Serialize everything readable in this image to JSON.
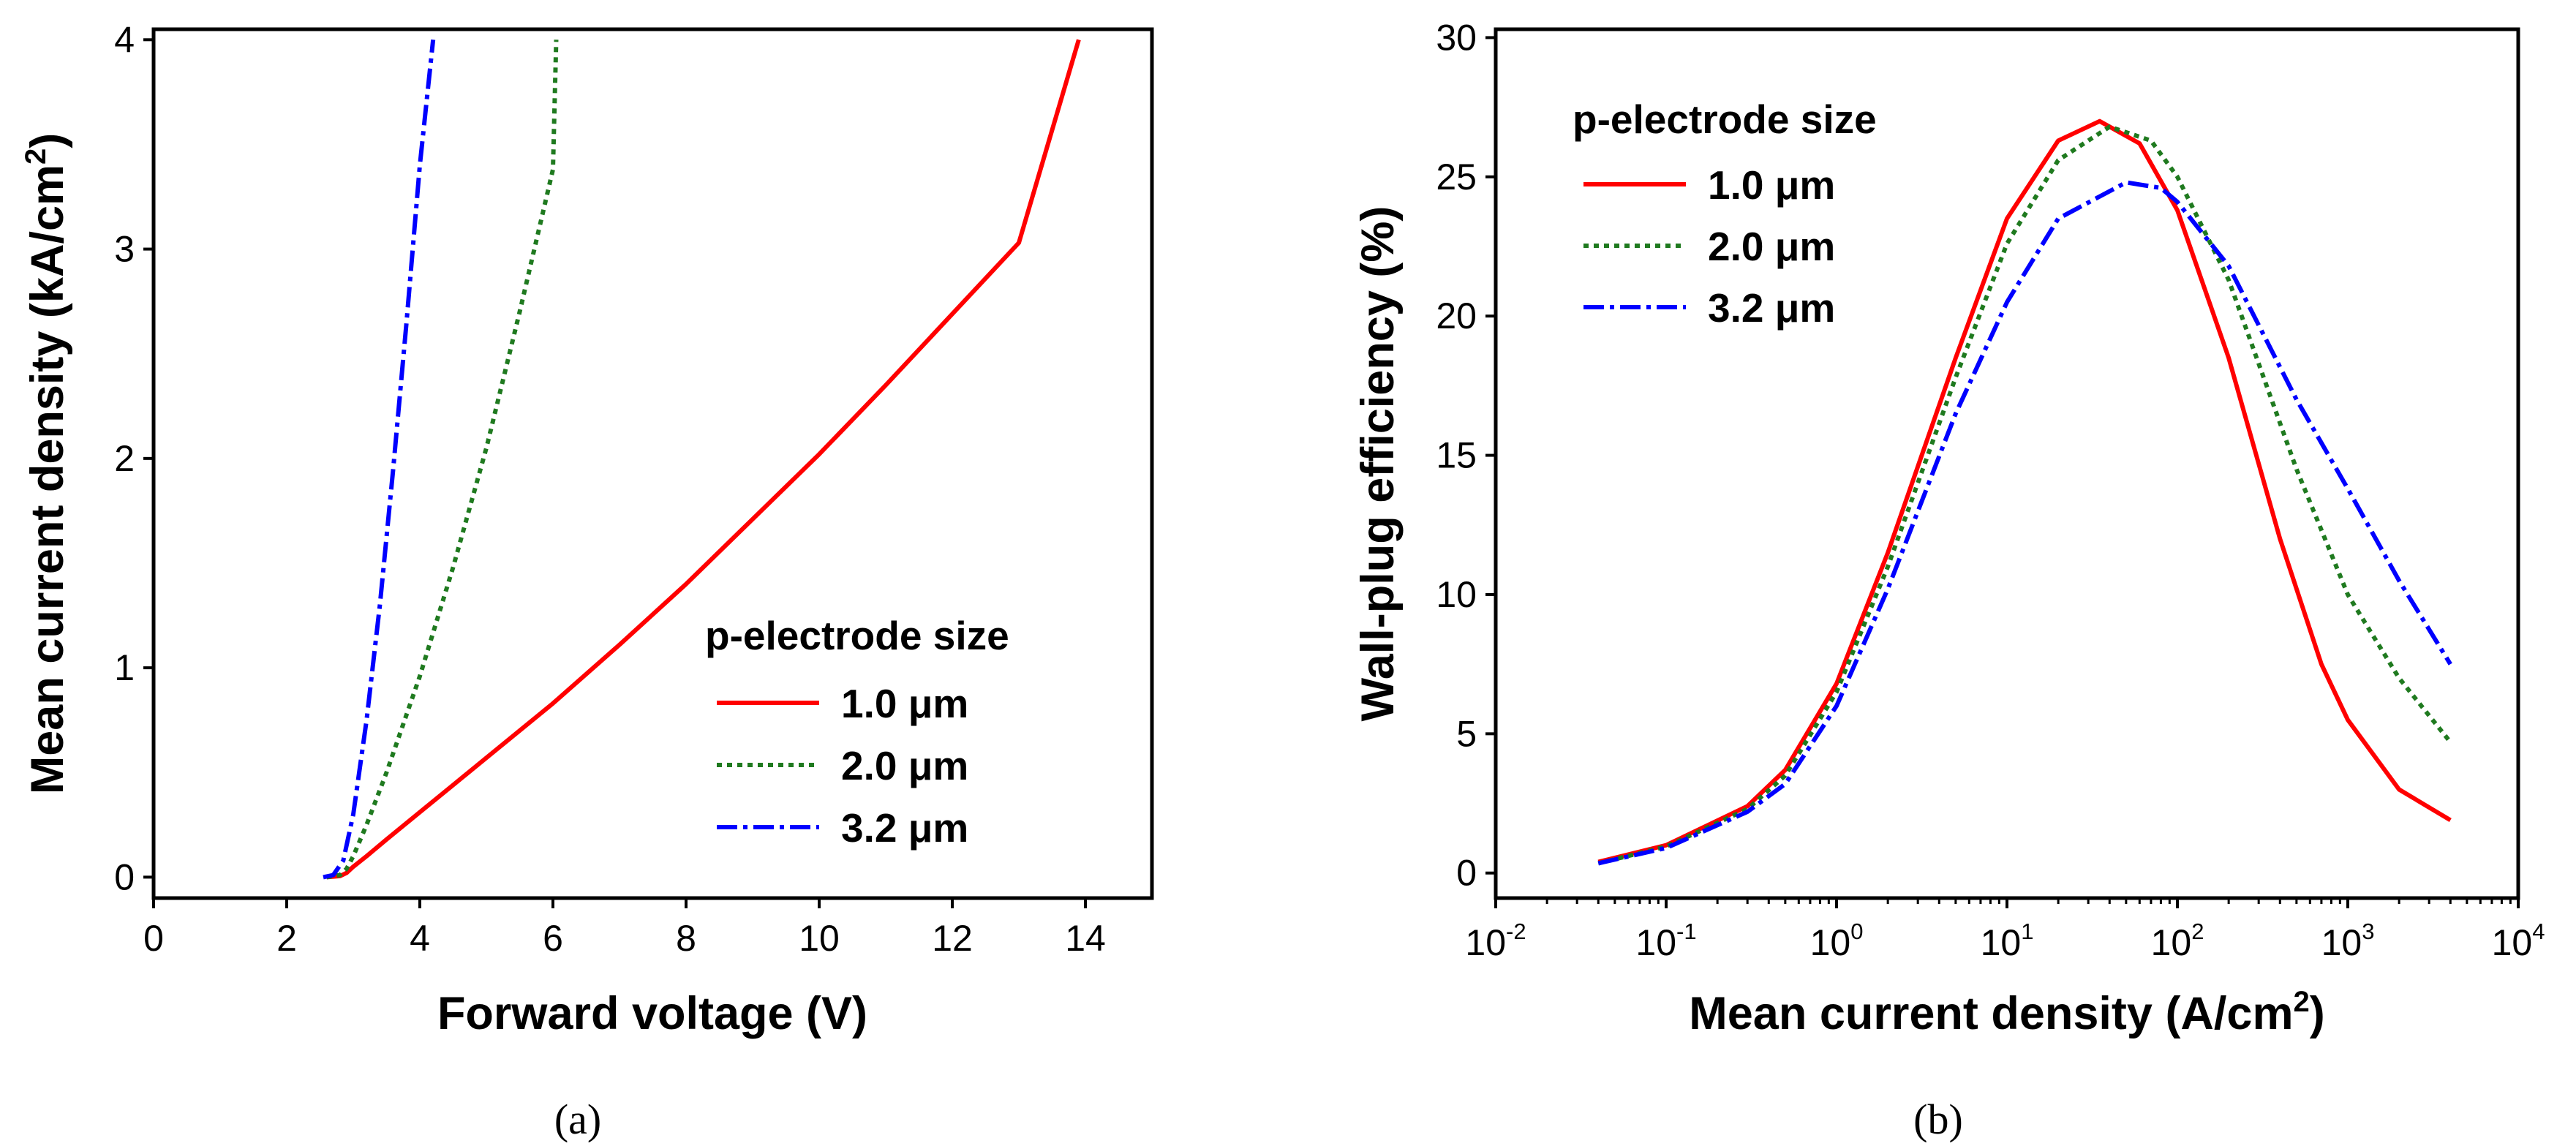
{
  "chart_data": [
    {
      "id": "a",
      "type": "line",
      "caption": "(a)",
      "xlabel": "Forward voltage (V)",
      "ylabel": "Mean current density (kA/cm",
      "ylabel_sup": "2",
      "ylabel_close": ")",
      "xlim": [
        0,
        15
      ],
      "ylim": [
        -0.1,
        4.05
      ],
      "x_ticks": [
        0,
        2,
        4,
        6,
        8,
        10,
        12,
        14
      ],
      "x_tick_labels": [
        "0",
        "2",
        "4",
        "6",
        "8",
        "10",
        "12",
        "14"
      ],
      "y_ticks": [
        0,
        1,
        2,
        3,
        4
      ],
      "y_tick_labels": [
        "0",
        "1",
        "2",
        "3",
        "4"
      ],
      "legend": {
        "title": "p-electrode size",
        "position": "lower-right"
      },
      "series": [
        {
          "name": "1.0 μm",
          "color": "#ff0000",
          "style": "solid",
          "points": [
            [
              2.6,
              0.0
            ],
            [
              2.8,
              0.005
            ],
            [
              2.9,
              0.02
            ],
            [
              3.0,
              0.05
            ],
            [
              3.2,
              0.1
            ],
            [
              3.5,
              0.18
            ],
            [
              4.0,
              0.31
            ],
            [
              4.5,
              0.44
            ],
            [
              5.0,
              0.57
            ],
            [
              6.0,
              0.83
            ],
            [
              7.0,
              1.11
            ],
            [
              8.0,
              1.4
            ],
            [
              9.0,
              1.71
            ],
            [
              10.0,
              2.02
            ],
            [
              11.0,
              2.35
            ],
            [
              12.0,
              2.69
            ],
            [
              13.0,
              3.03
            ],
            [
              13.9,
              4.0
            ]
          ]
        },
        {
          "name": "2.0 μm",
          "color": "#1f7a1f",
          "style": "dotted",
          "points": [
            [
              2.6,
              0.0
            ],
            [
              2.8,
              0.01
            ],
            [
              2.9,
              0.04
            ],
            [
              3.0,
              0.1
            ],
            [
              3.2,
              0.25
            ],
            [
              3.5,
              0.5
            ],
            [
              4.0,
              0.96
            ],
            [
              4.5,
              1.48
            ],
            [
              5.0,
              2.05
            ],
            [
              5.5,
              2.7
            ],
            [
              6.0,
              3.38
            ],
            [
              6.05,
              4.0
            ]
          ]
        },
        {
          "name": "3.2 μm",
          "color": "#0000ff",
          "style": "dashdot",
          "points": [
            [
              2.55,
              0.0
            ],
            [
              2.7,
              0.01
            ],
            [
              2.85,
              0.08
            ],
            [
              3.0,
              0.3
            ],
            [
              3.2,
              0.75
            ],
            [
              3.4,
              1.3
            ],
            [
              3.6,
              1.95
            ],
            [
              3.8,
              2.65
            ],
            [
              4.0,
              3.4
            ],
            [
              4.2,
              4.0
            ]
          ]
        }
      ]
    },
    {
      "id": "b",
      "type": "line",
      "caption": "(b)",
      "xscale": "log",
      "xlabel": "Mean current density (A/cm",
      "xlabel_sup": "2",
      "xlabel_close": ")",
      "ylabel": "Wall-plug efficiency (%)",
      "xlim": [
        0.01,
        10000
      ],
      "ylim": [
        -0.9,
        30.3
      ],
      "x_ticks": [
        0.01,
        0.1,
        1,
        10,
        100,
        1000,
        10000
      ],
      "x_tick_labels": [
        {
          "base": "10",
          "exp": "-2"
        },
        {
          "base": "10",
          "exp": "-1"
        },
        {
          "base": "10",
          "exp": "0"
        },
        {
          "base": "10",
          "exp": "1"
        },
        {
          "base": "10",
          "exp": "2"
        },
        {
          "base": "10",
          "exp": "3"
        },
        {
          "base": "10",
          "exp": "4"
        }
      ],
      "y_ticks": [
        0,
        5,
        10,
        15,
        20,
        25,
        30
      ],
      "y_tick_labels": [
        "0",
        "5",
        "10",
        "15",
        "20",
        "25",
        "30"
      ],
      "legend": {
        "title": "p-electrode size",
        "position": "top-left"
      },
      "series": [
        {
          "name": "1.0 μm",
          "color": "#ff0000",
          "style": "solid",
          "points": [
            [
              0.04,
              0.4
            ],
            [
              0.1,
              1.0
            ],
            [
              0.3,
              2.4
            ],
            [
              0.5,
              3.7
            ],
            [
              1,
              6.8
            ],
            [
              2,
              11.5
            ],
            [
              5,
              18.5
            ],
            [
              10,
              23.5
            ],
            [
              20,
              26.3
            ],
            [
              35,
              27.0
            ],
            [
              60,
              26.2
            ],
            [
              100,
              23.8
            ],
            [
              200,
              18.5
            ],
            [
              400,
              12.0
            ],
            [
              700,
              7.5
            ],
            [
              1000,
              5.5
            ],
            [
              2000,
              3.0
            ],
            [
              4000,
              1.9
            ]
          ]
        },
        {
          "name": "2.0 μm",
          "color": "#1f7a1f",
          "style": "dotted",
          "points": [
            [
              0.04,
              0.35
            ],
            [
              0.1,
              0.95
            ],
            [
              0.3,
              2.3
            ],
            [
              0.5,
              3.5
            ],
            [
              1,
              6.5
            ],
            [
              2,
              11.0
            ],
            [
              5,
              17.8
            ],
            [
              10,
              22.6
            ],
            [
              20,
              25.6
            ],
            [
              40,
              26.8
            ],
            [
              70,
              26.3
            ],
            [
              100,
              25.0
            ],
            [
              200,
              21.3
            ],
            [
              500,
              14.5
            ],
            [
              1000,
              10.0
            ],
            [
              2000,
              7.0
            ],
            [
              4000,
              4.7
            ]
          ]
        },
        {
          "name": "3.2 μm",
          "color": "#0000ff",
          "style": "dashdot",
          "points": [
            [
              0.04,
              0.35
            ],
            [
              0.1,
              0.9
            ],
            [
              0.3,
              2.2
            ],
            [
              0.5,
              3.2
            ],
            [
              1,
              6.0
            ],
            [
              2,
              10.2
            ],
            [
              5,
              16.5
            ],
            [
              10,
              20.5
            ],
            [
              20,
              23.5
            ],
            [
              50,
              24.8
            ],
            [
              80,
              24.6
            ],
            [
              100,
              24.1
            ],
            [
              200,
              21.8
            ],
            [
              500,
              17.0
            ],
            [
              1000,
              13.8
            ],
            [
              2000,
              10.5
            ],
            [
              4000,
              7.5
            ]
          ]
        }
      ]
    }
  ]
}
